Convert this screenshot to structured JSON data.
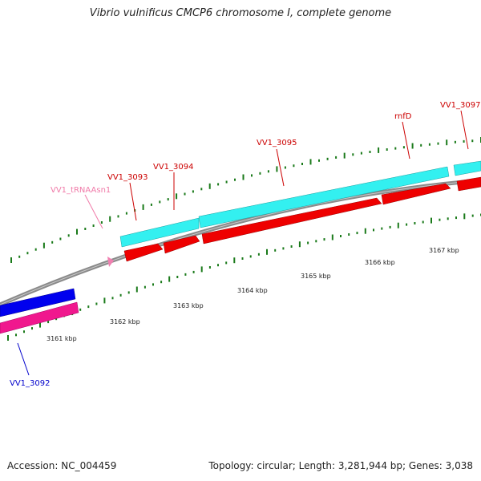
{
  "header": {
    "title": "Vibrio vulnificus CMCP6 chromosome I, complete genome"
  },
  "footer": {
    "accession": "Accession: NC_004459",
    "topology": "Topology: circular; Length: 3,281,944 bp; Genes: 3,038"
  },
  "colors": {
    "backbone": "#8a8a8a",
    "cyan": "#33f0f0",
    "red": "#ee0000",
    "blue": "#0000ee",
    "magenta": "#f0188e",
    "pink": "#f080b0",
    "tick": "#1a7a1a",
    "label_red": "#cc0000",
    "label_blue": "#0000cc",
    "label_pink": "#f07aa8"
  },
  "scale": {
    "unit": "kbp",
    "labels": [
      "3161 kbp",
      "3162 kbp",
      "3163 kbp",
      "3164 kbp",
      "3165 kbp",
      "3166 kbp",
      "3167 kbp"
    ]
  },
  "genes": [
    {
      "label": "VV1_3092",
      "color": "blue"
    },
    {
      "label": "VV1_tRNAAsn1",
      "color": "pink"
    },
    {
      "label": "VV1_3093",
      "color": "red"
    },
    {
      "label": "VV1_3094",
      "color": "red"
    },
    {
      "label": "VV1_3095",
      "color": "red"
    },
    {
      "label": "rnfD",
      "color": "red"
    },
    {
      "label": "VV1_3097",
      "color": "red"
    }
  ]
}
